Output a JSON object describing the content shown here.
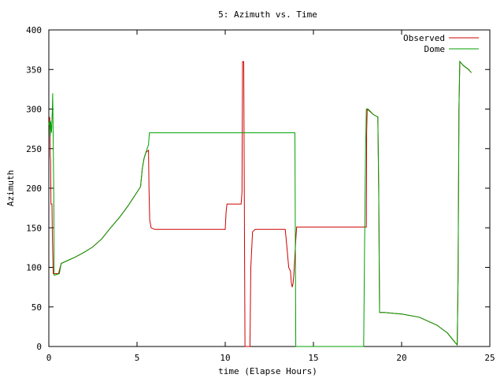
{
  "chart_data": {
    "type": "line",
    "title": "5: Azimuth vs. Time",
    "xlabel": "time (Elapse Hours)",
    "ylabel": "Azimuth",
    "xlim": [
      0,
      25
    ],
    "ylim": [
      0,
      400
    ],
    "xticks": [
      0,
      5,
      10,
      15,
      20,
      25
    ],
    "yticks": [
      0,
      50,
      100,
      150,
      200,
      250,
      300,
      350,
      400
    ],
    "grid": false,
    "legend_position": "top-right",
    "series": [
      {
        "name": "Observed",
        "color": "#cc0000",
        "points": [
          [
            0.0,
            280
          ],
          [
            0.05,
            290
          ],
          [
            0.08,
            240
          ],
          [
            0.1,
            235
          ],
          [
            0.12,
            180
          ],
          [
            0.18,
            180
          ],
          [
            0.2,
            140
          ],
          [
            0.22,
            120
          ],
          [
            0.25,
            92
          ],
          [
            0.55,
            92
          ],
          [
            0.7,
            105
          ],
          [
            1.0,
            108
          ],
          [
            1.5,
            113
          ],
          [
            2.0,
            119
          ],
          [
            2.5,
            126
          ],
          [
            3.0,
            136
          ],
          [
            3.5,
            150
          ],
          [
            4.0,
            163
          ],
          [
            4.5,
            178
          ],
          [
            5.0,
            195
          ],
          [
            5.2,
            202
          ],
          [
            5.3,
            225
          ],
          [
            5.4,
            238
          ],
          [
            5.5,
            245
          ],
          [
            5.65,
            248
          ],
          [
            5.68,
            200
          ],
          [
            5.72,
            160
          ],
          [
            5.8,
            150
          ],
          [
            6.0,
            148
          ],
          [
            10.0,
            148
          ],
          [
            10.05,
            170
          ],
          [
            10.1,
            180
          ],
          [
            10.9,
            180
          ],
          [
            10.95,
            195
          ],
          [
            10.98,
            360
          ],
          [
            11.05,
            360
          ],
          [
            11.08,
            200
          ],
          [
            11.12,
            0
          ],
          [
            11.4,
            0
          ],
          [
            11.45,
            100
          ],
          [
            11.55,
            145
          ],
          [
            11.7,
            148
          ],
          [
            13.4,
            148
          ],
          [
            13.5,
            125
          ],
          [
            13.6,
            100
          ],
          [
            13.7,
            95
          ],
          [
            13.75,
            80
          ],
          [
            13.8,
            75
          ],
          [
            13.85,
            80
          ],
          [
            13.9,
            95
          ],
          [
            14.0,
            135
          ],
          [
            14.05,
            151
          ],
          [
            18.0,
            151
          ],
          [
            18.02,
            270
          ],
          [
            18.05,
            300
          ],
          [
            18.4,
            293
          ],
          [
            18.65,
            290
          ],
          [
            18.7,
            200
          ],
          [
            18.75,
            43
          ],
          [
            19.0,
            43
          ],
          [
            20.0,
            41
          ],
          [
            21.0,
            37
          ],
          [
            22.0,
            27
          ],
          [
            22.6,
            17
          ],
          [
            23.0,
            6
          ],
          [
            23.15,
            2
          ],
          [
            23.2,
            90
          ],
          [
            23.25,
            300
          ],
          [
            23.3,
            360
          ],
          [
            23.5,
            355
          ],
          [
            23.8,
            350
          ],
          [
            23.95,
            346
          ]
        ]
      },
      {
        "name": "Dome",
        "color": "#00a000",
        "points": [
          [
            0.0,
            280
          ],
          [
            0.05,
            285
          ],
          [
            0.08,
            265
          ],
          [
            0.1,
            285
          ],
          [
            0.15,
            270
          ],
          [
            0.2,
            300
          ],
          [
            0.22,
            320
          ],
          [
            0.25,
            260
          ],
          [
            0.28,
            190
          ],
          [
            0.3,
            90
          ],
          [
            0.6,
            92
          ],
          [
            0.7,
            105
          ],
          [
            1.0,
            108
          ],
          [
            1.5,
            113
          ],
          [
            2.0,
            119
          ],
          [
            2.5,
            126
          ],
          [
            3.0,
            136
          ],
          [
            3.5,
            150
          ],
          [
            4.0,
            163
          ],
          [
            4.5,
            178
          ],
          [
            5.0,
            195
          ],
          [
            5.2,
            202
          ],
          [
            5.3,
            225
          ],
          [
            5.4,
            238
          ],
          [
            5.5,
            245
          ],
          [
            5.65,
            255
          ],
          [
            5.7,
            270
          ],
          [
            13.95,
            270
          ],
          [
            14.0,
            0
          ],
          [
            17.85,
            0
          ],
          [
            17.9,
            130
          ],
          [
            17.95,
            240
          ],
          [
            18.0,
            300
          ],
          [
            18.1,
            300
          ],
          [
            18.4,
            293
          ],
          [
            18.65,
            290
          ],
          [
            18.7,
            200
          ],
          [
            18.75,
            43
          ],
          [
            19.0,
            43
          ],
          [
            20.0,
            41
          ],
          [
            21.0,
            37
          ],
          [
            22.0,
            27
          ],
          [
            22.6,
            17
          ],
          [
            23.0,
            6
          ],
          [
            23.15,
            2
          ],
          [
            23.2,
            90
          ],
          [
            23.25,
            300
          ],
          [
            23.3,
            360
          ],
          [
            23.5,
            355
          ],
          [
            23.8,
            350
          ],
          [
            23.95,
            346
          ]
        ]
      }
    ]
  }
}
